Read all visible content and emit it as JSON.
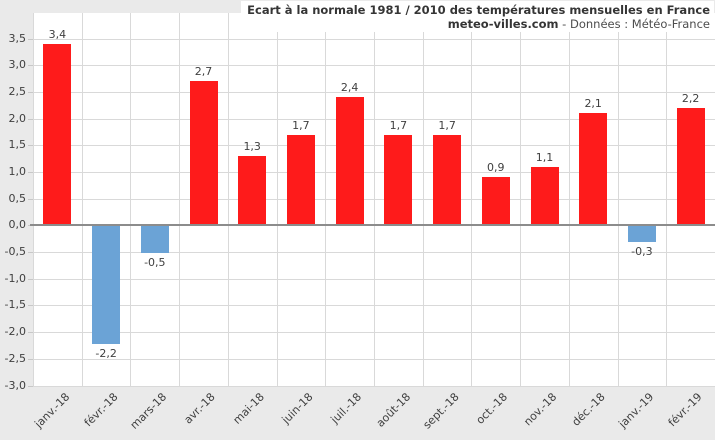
{
  "title": {
    "line1": "Ecart à la normale 1981 / 2010 des températures mensuelles en France",
    "source_bold": "meteo-villes.com",
    "source_rest": " - Données : Météo-France"
  },
  "colors": {
    "positive_bar": "#fe1b1b",
    "negative_bar": "#6ba3d6",
    "gridline": "#d9d9d9",
    "zero_line": "#8c8c8c",
    "background": "#eaeaea",
    "plot_background": "#ffffff",
    "text": "#3f3f3f"
  },
  "chart_data": {
    "type": "bar",
    "title": "Ecart à la normale 1981 / 2010 des températures mensuelles en France",
    "subtitle": "meteo-villes.com - Données : Météo-France",
    "categories": [
      "janv.-18",
      "févr.-18",
      "mars-18",
      "avr.-18",
      "mai-18",
      "juin-18",
      "juil.-18",
      "août-18",
      "sept.-18",
      "oct.-18",
      "nov.-18",
      "déc.-18",
      "janv.-19",
      "févr.-19"
    ],
    "values": [
      3.4,
      -2.2,
      -0.5,
      2.7,
      1.3,
      1.7,
      2.4,
      1.7,
      1.7,
      0.9,
      1.1,
      2.1,
      -0.3,
      2.2
    ],
    "data_labels": [
      "3,4",
      "-2,2",
      "-0,5",
      "2,7",
      "1,3",
      "1,7",
      "2,4",
      "1,7",
      "1,7",
      "0,9",
      "1,1",
      "2,1",
      "-0,3",
      "2,2"
    ],
    "ylabel": "",
    "xlabel": "",
    "ylim": [
      -3.0,
      3.5
    ],
    "ytick_step": 0.5,
    "ytick_labels": [
      "3,5",
      "3,0",
      "2,5",
      "2,0",
      "1,5",
      "1,0",
      "0,5",
      "0,0",
      "-0,5",
      "-1,0",
      "-1,5",
      "-2,0",
      "-2,5",
      "-3,0"
    ],
    "grid": true,
    "legend": "none",
    "decimal_separator": ","
  }
}
